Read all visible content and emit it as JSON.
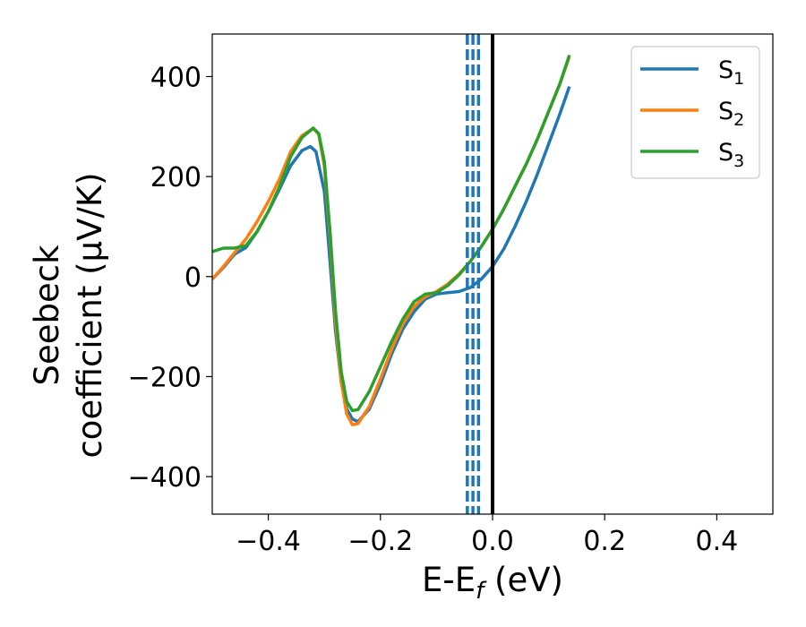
{
  "chart_data": {
    "type": "line",
    "xlabel": {
      "main": "E-E",
      "sub": "f",
      "unit": " (eV)"
    },
    "ylabel": {
      "line1": "Seebeck",
      "line2": "coefficient  (μV/K)"
    },
    "xlim": [
      -0.5,
      0.5
    ],
    "ylim": [
      -475,
      485
    ],
    "xticks": [
      -0.4,
      -0.2,
      0.0,
      0.2,
      0.4
    ],
    "xtick_labels": [
      "−0.4",
      "−0.2",
      "0.0",
      "0.2",
      "0.4"
    ],
    "yticks": [
      400,
      200,
      0,
      -200,
      -400
    ],
    "ytick_labels": [
      "400",
      "200",
      "0",
      "−200",
      "−400"
    ],
    "grid": false,
    "legend": "top-right",
    "series": [
      {
        "name": "S",
        "sub": "1",
        "color": "#1f77b4",
        "points": [
          [
            -0.5,
            -5
          ],
          [
            -0.48,
            18
          ],
          [
            -0.46,
            45
          ],
          [
            -0.44,
            58
          ],
          [
            -0.42,
            90
          ],
          [
            -0.4,
            130
          ],
          [
            -0.38,
            175
          ],
          [
            -0.36,
            222
          ],
          [
            -0.34,
            252
          ],
          [
            -0.325,
            260
          ],
          [
            -0.315,
            250
          ],
          [
            -0.3,
            170
          ],
          [
            -0.29,
            30
          ],
          [
            -0.28,
            -110
          ],
          [
            -0.27,
            -210
          ],
          [
            -0.26,
            -265
          ],
          [
            -0.25,
            -285
          ],
          [
            -0.24,
            -290
          ],
          [
            -0.22,
            -265
          ],
          [
            -0.2,
            -215
          ],
          [
            -0.18,
            -155
          ],
          [
            -0.16,
            -105
          ],
          [
            -0.14,
            -70
          ],
          [
            -0.12,
            -45
          ],
          [
            -0.1,
            -35
          ],
          [
            -0.08,
            -32
          ],
          [
            -0.06,
            -30
          ],
          [
            -0.04,
            -22
          ],
          [
            -0.02,
            -5
          ],
          [
            0.0,
            20
          ],
          [
            0.02,
            55
          ],
          [
            0.04,
            100
          ],
          [
            0.06,
            150
          ],
          [
            0.08,
            205
          ],
          [
            0.1,
            265
          ],
          [
            0.12,
            325
          ],
          [
            0.137,
            380
          ]
        ]
      },
      {
        "name": "S",
        "sub": "2",
        "color": "#ff7f0e",
        "points": [
          [
            -0.5,
            -5
          ],
          [
            -0.48,
            20
          ],
          [
            -0.46,
            48
          ],
          [
            -0.44,
            75
          ],
          [
            -0.42,
            110
          ],
          [
            -0.4,
            150
          ],
          [
            -0.38,
            195
          ],
          [
            -0.36,
            250
          ],
          [
            -0.34,
            282
          ],
          [
            -0.32,
            296
          ],
          [
            -0.31,
            285
          ],
          [
            -0.3,
            220
          ],
          [
            -0.29,
            80
          ],
          [
            -0.28,
            -90
          ],
          [
            -0.27,
            -210
          ],
          [
            -0.26,
            -275
          ],
          [
            -0.25,
            -296
          ],
          [
            -0.24,
            -294
          ],
          [
            -0.22,
            -260
          ],
          [
            -0.2,
            -205
          ],
          [
            -0.18,
            -145
          ],
          [
            -0.16,
            -95
          ],
          [
            -0.14,
            -60
          ],
          [
            -0.12,
            -40
          ],
          [
            -0.1,
            -30
          ],
          [
            -0.08,
            -15
          ],
          [
            -0.06,
            5
          ],
          [
            -0.04,
            30
          ],
          [
            -0.02,
            60
          ],
          [
            0.0,
            95
          ],
          [
            0.02,
            135
          ],
          [
            0.04,
            180
          ],
          [
            0.06,
            225
          ],
          [
            0.08,
            275
          ],
          [
            0.1,
            330
          ],
          [
            0.12,
            385
          ],
          [
            0.137,
            440
          ]
        ]
      },
      {
        "name": "S",
        "sub": "3",
        "color": "#2ca02c",
        "points": [
          [
            -0.5,
            50
          ],
          [
            -0.48,
            57
          ],
          [
            -0.46,
            57
          ],
          [
            -0.44,
            62
          ],
          [
            -0.42,
            90
          ],
          [
            -0.4,
            130
          ],
          [
            -0.38,
            180
          ],
          [
            -0.36,
            240
          ],
          [
            -0.34,
            278
          ],
          [
            -0.32,
            297
          ],
          [
            -0.31,
            286
          ],
          [
            -0.3,
            230
          ],
          [
            -0.29,
            90
          ],
          [
            -0.28,
            -70
          ],
          [
            -0.27,
            -190
          ],
          [
            -0.26,
            -250
          ],
          [
            -0.25,
            -268
          ],
          [
            -0.24,
            -266
          ],
          [
            -0.22,
            -230
          ],
          [
            -0.2,
            -180
          ],
          [
            -0.18,
            -130
          ],
          [
            -0.16,
            -85
          ],
          [
            -0.14,
            -50
          ],
          [
            -0.12,
            -35
          ],
          [
            -0.1,
            -32
          ],
          [
            -0.08,
            -18
          ],
          [
            -0.06,
            3
          ],
          [
            -0.04,
            30
          ],
          [
            -0.02,
            60
          ],
          [
            0.0,
            95
          ],
          [
            0.02,
            135
          ],
          [
            0.04,
            180
          ],
          [
            0.06,
            225
          ],
          [
            0.08,
            275
          ],
          [
            0.1,
            330
          ],
          [
            0.12,
            385
          ],
          [
            0.137,
            443
          ]
        ]
      }
    ],
    "vlines": [
      {
        "x": -0.045,
        "style": "dashed",
        "color": "#1f77b4"
      },
      {
        "x": -0.035,
        "style": "dashed",
        "color": "#1f77b4"
      },
      {
        "x": -0.025,
        "style": "dashed",
        "color": "#1f77b4"
      },
      {
        "x": 0.0,
        "style": "solid",
        "color": "#000000"
      }
    ]
  }
}
